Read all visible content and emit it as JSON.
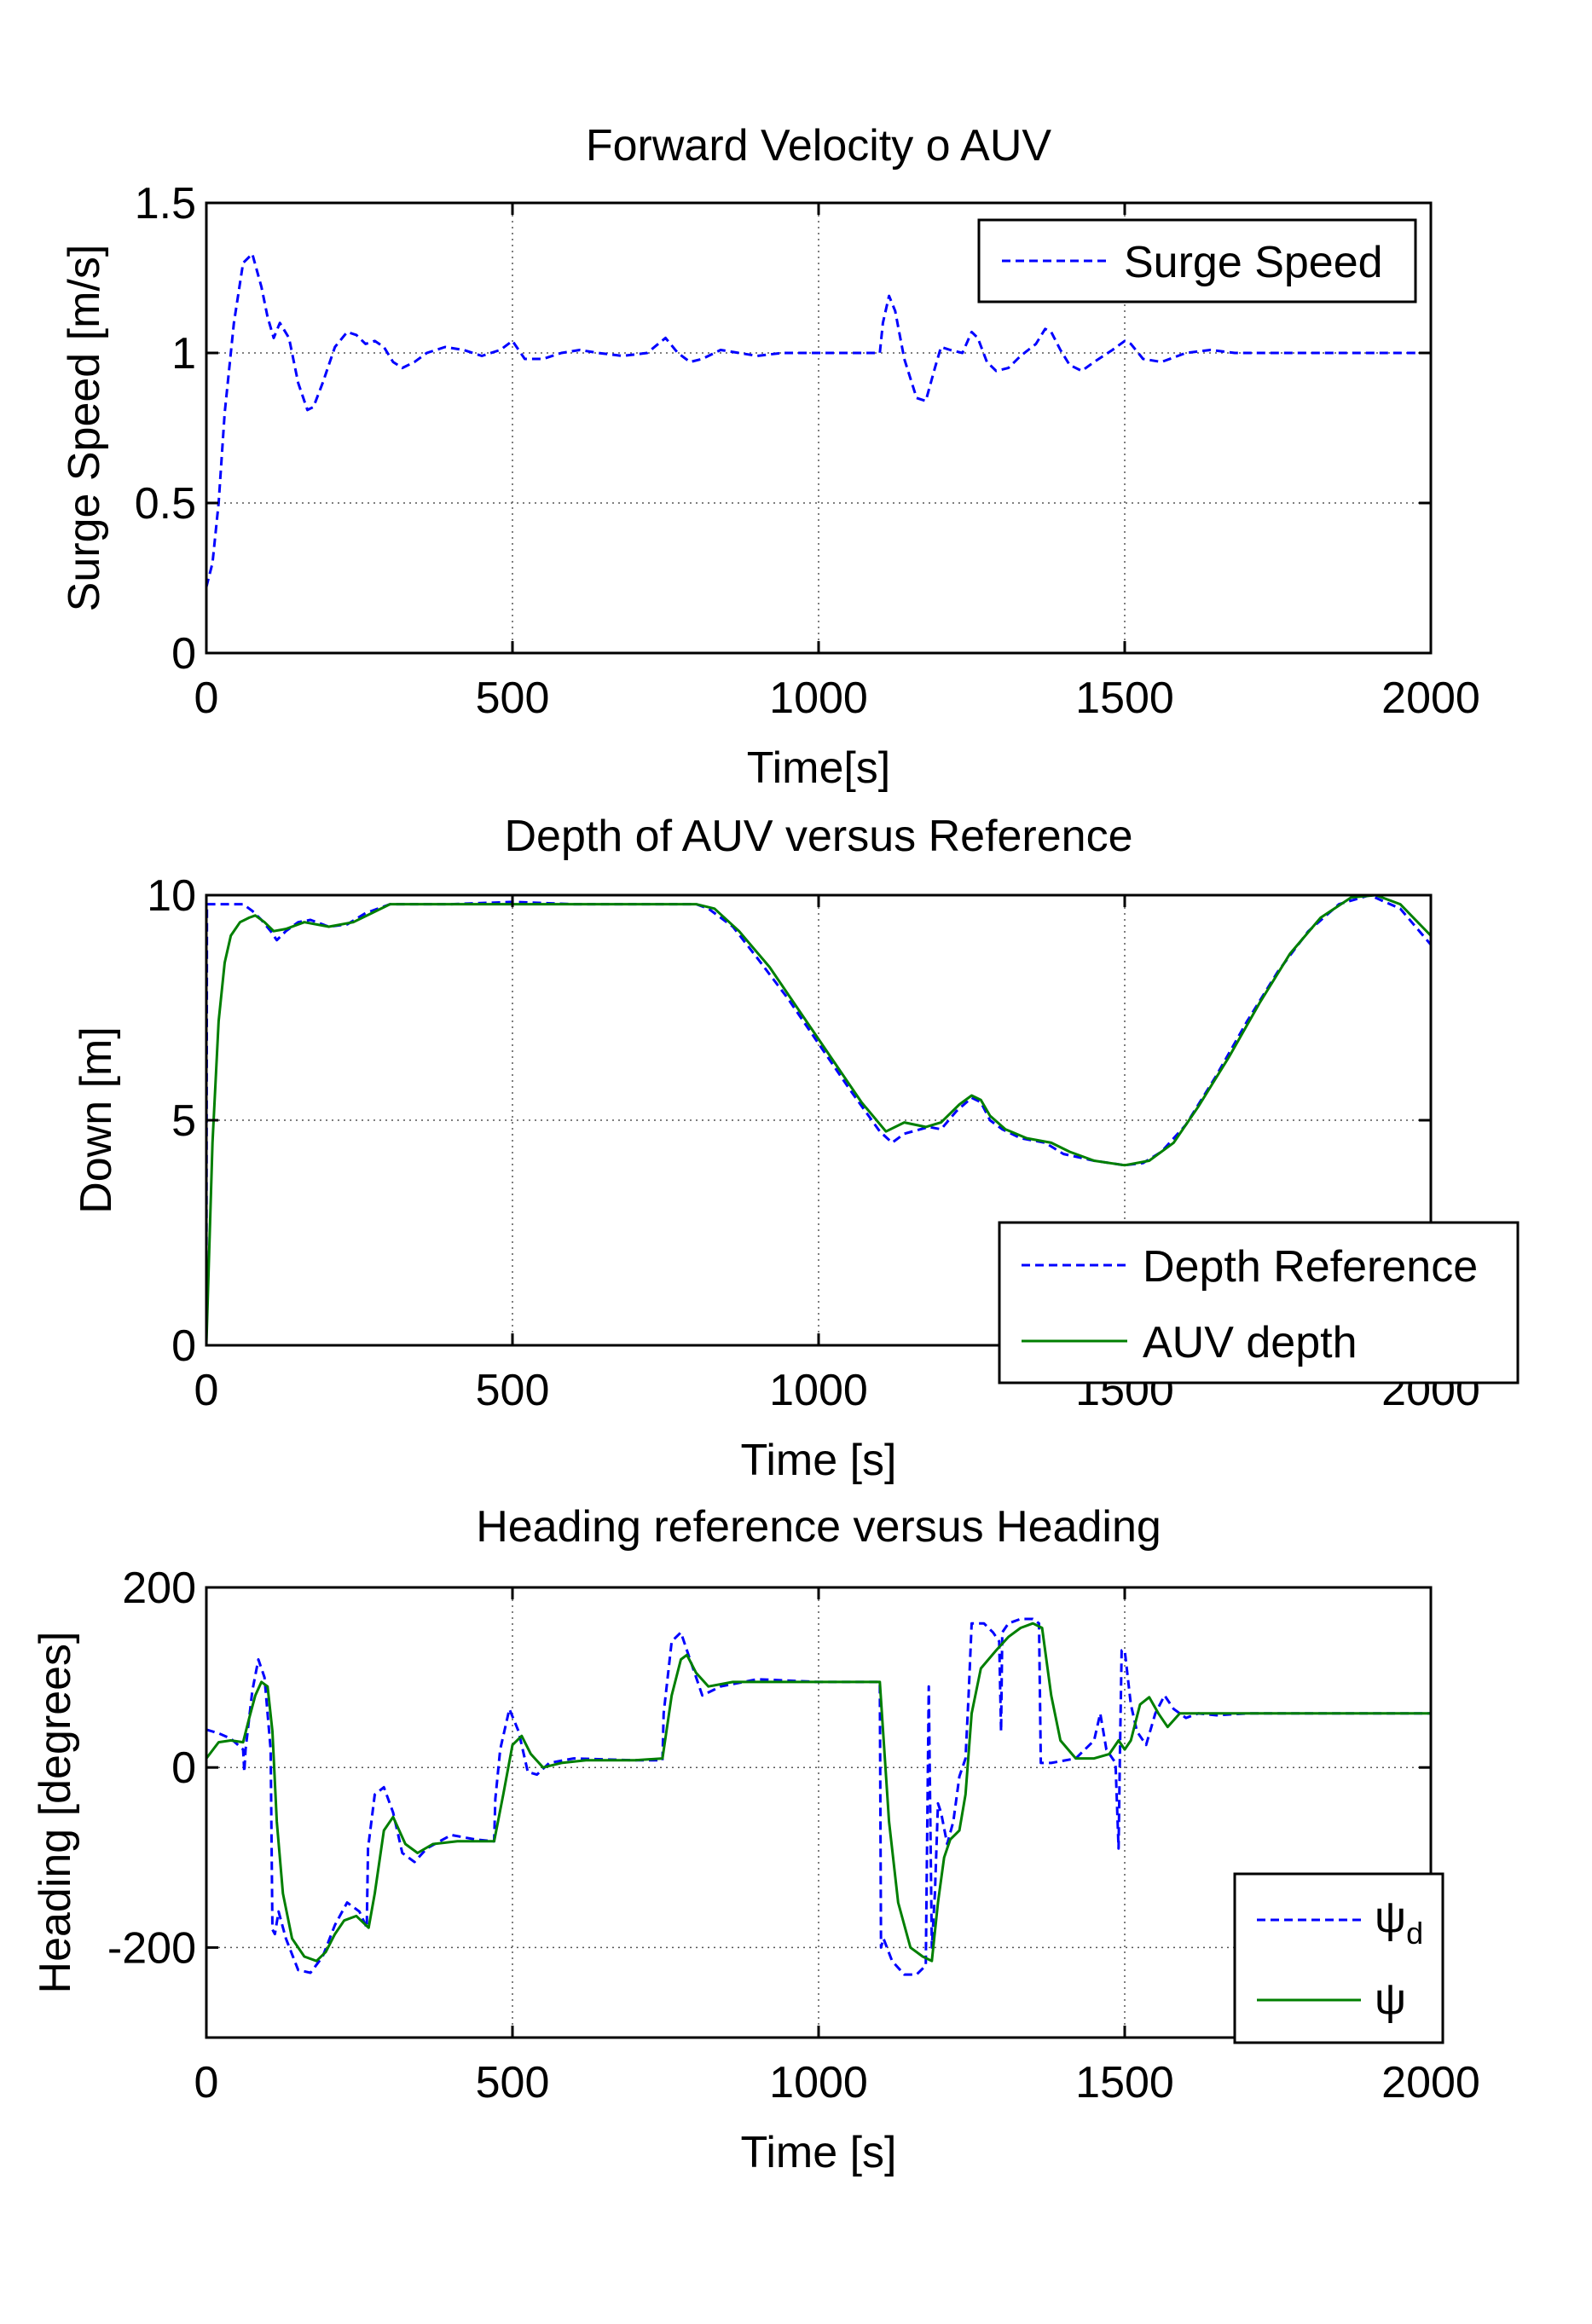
{
  "chart_data": [
    {
      "type": "line",
      "title": "Forward Velocity o AUV",
      "xlabel": "Time[s]",
      "ylabel": "Surge Speed [m/s]",
      "xlim": [
        0,
        2000
      ],
      "ylim": [
        0,
        1.5
      ],
      "xticks": [
        "0",
        "500",
        "1000",
        "1500",
        "2000"
      ],
      "yticks": [
        "0",
        "0.5",
        "1",
        "1.5"
      ],
      "grid": true,
      "legend_position": "top-right",
      "series": [
        {
          "name": "Surge Speed",
          "color": "#0000ff",
          "style": "dashed",
          "x": [
            0,
            10,
            20,
            30,
            45,
            60,
            75,
            90,
            100,
            110,
            120,
            135,
            150,
            165,
            175,
            190,
            210,
            230,
            245,
            260,
            275,
            290,
            305,
            320,
            340,
            360,
            390,
            420,
            450,
            480,
            500,
            520,
            550,
            580,
            610,
            640,
            680,
            720,
            750,
            770,
            790,
            810,
            840,
            870,
            900,
            940,
            980,
            1020,
            1060,
            1100,
            1105,
            1115,
            1125,
            1140,
            1160,
            1175,
            1190,
            1200,
            1215,
            1235,
            1250,
            1260,
            1275,
            1290,
            1310,
            1330,
            1355,
            1370,
            1380,
            1395,
            1410,
            1430,
            1450,
            1480,
            1500,
            1510,
            1530,
            1560,
            1600,
            1640,
            1680,
            1720,
            1760,
            1800,
            1900,
            2000
          ],
          "y": [
            0.22,
            0.3,
            0.5,
            0.8,
            1.1,
            1.3,
            1.33,
            1.22,
            1.12,
            1.05,
            1.1,
            1.05,
            0.9,
            0.81,
            0.82,
            0.9,
            1.02,
            1.07,
            1.06,
            1.03,
            1.04,
            1.02,
            0.97,
            0.95,
            0.97,
            1.0,
            1.02,
            1.01,
            0.99,
            1.01,
            1.04,
            0.98,
            0.98,
            1.0,
            1.01,
            1.0,
            0.99,
            1.0,
            1.05,
            1.0,
            0.97,
            0.98,
            1.01,
            1.0,
            0.99,
            1.0,
            1.0,
            1.0,
            1.0,
            1.0,
            1.1,
            1.19,
            1.14,
            0.98,
            0.85,
            0.84,
            0.95,
            1.02,
            1.01,
            1.0,
            1.07,
            1.05,
            0.97,
            0.94,
            0.95,
            0.99,
            1.03,
            1.08,
            1.07,
            1.01,
            0.96,
            0.94,
            0.97,
            1.01,
            1.04,
            1.03,
            0.98,
            0.97,
            1.0,
            1.01,
            1.0,
            1.0,
            1.0,
            1.0,
            1.0,
            1.0
          ]
        }
      ]
    },
    {
      "type": "line",
      "title": "Depth of AUV versus Reference",
      "xlabel": "Time [s]",
      "ylabel": "Down [m]",
      "xlim": [
        0,
        2000
      ],
      "ylim": [
        0,
        10
      ],
      "xticks": [
        "0",
        "500",
        "1000",
        "1500",
        "2000"
      ],
      "yticks": [
        "0",
        "5",
        "10"
      ],
      "grid": true,
      "legend_position": "bottom-right",
      "series": [
        {
          "name": "Depth Reference",
          "color": "#0000ff",
          "style": "dashed",
          "x": [
            0,
            1,
            60,
            75,
            90,
            105,
            115,
            130,
            150,
            170,
            200,
            230,
            260,
            300,
            400,
            500,
            600,
            700,
            800,
            820,
            860,
            900,
            950,
            1000,
            1050,
            1100,
            1120,
            1140,
            1180,
            1200,
            1225,
            1250,
            1265,
            1280,
            1300,
            1330,
            1370,
            1400,
            1450,
            1500,
            1530,
            1560,
            1600,
            1650,
            1700,
            1750,
            1800,
            1850,
            1900,
            1950,
            2000
          ],
          "y": [
            0.1,
            9.8,
            9.8,
            9.65,
            9.45,
            9.2,
            9.0,
            9.2,
            9.4,
            9.45,
            9.3,
            9.35,
            9.6,
            9.8,
            9.8,
            9.85,
            9.8,
            9.8,
            9.8,
            9.7,
            9.3,
            8.6,
            7.7,
            6.7,
            5.7,
            4.75,
            4.5,
            4.7,
            4.85,
            4.8,
            5.2,
            5.5,
            5.4,
            5.0,
            4.8,
            4.6,
            4.5,
            4.25,
            4.1,
            4.0,
            4.05,
            4.3,
            4.9,
            6.0,
            7.2,
            8.3,
            9.2,
            9.8,
            10.0,
            9.7,
            8.9
          ]
        },
        {
          "name": "AUV depth",
          "color": "#007f00",
          "style": "solid",
          "x": [
            0,
            10,
            20,
            30,
            40,
            55,
            70,
            80,
            95,
            110,
            130,
            160,
            200,
            240,
            270,
            300,
            400,
            500,
            600,
            700,
            800,
            830,
            870,
            920,
            970,
            1020,
            1070,
            1110,
            1140,
            1175,
            1200,
            1230,
            1250,
            1265,
            1280,
            1305,
            1340,
            1380,
            1410,
            1450,
            1500,
            1540,
            1580,
            1620,
            1670,
            1720,
            1770,
            1820,
            1870,
            1910,
            1950,
            2000
          ],
          "y": [
            0.0,
            4.5,
            7.2,
            8.5,
            9.1,
            9.4,
            9.5,
            9.55,
            9.4,
            9.2,
            9.25,
            9.4,
            9.3,
            9.4,
            9.6,
            9.8,
            9.8,
            9.8,
            9.8,
            9.8,
            9.8,
            9.7,
            9.2,
            8.4,
            7.4,
            6.4,
            5.4,
            4.75,
            4.95,
            4.85,
            4.95,
            5.35,
            5.55,
            5.45,
            5.1,
            4.8,
            4.6,
            4.5,
            4.3,
            4.1,
            4.0,
            4.1,
            4.5,
            5.3,
            6.4,
            7.6,
            8.7,
            9.5,
            9.95,
            10.0,
            9.8,
            9.1
          ]
        }
      ]
    },
    {
      "type": "line",
      "title": "Heading reference versus Heading",
      "xlabel": "Time [s]",
      "ylabel": "Heading [degrees]",
      "xlim": [
        0,
        2000
      ],
      "ylim": [
        -300,
        200
      ],
      "xticks": [
        "0",
        "500",
        "1000",
        "1500",
        "2000"
      ],
      "yticks": [
        "-200",
        "0",
        "200"
      ],
      "grid": true,
      "legend_position": "bottom-right",
      "series": [
        {
          "name": "ψd",
          "color": "#0000ff",
          "style": "dashed",
          "x": [
            0,
            20,
            40,
            60,
            62,
            64,
            75,
            85,
            95,
            105,
            108,
            112,
            118,
            130,
            150,
            170,
            190,
            210,
            230,
            250,
            262,
            264,
            275,
            290,
            305,
            320,
            340,
            360,
            400,
            440,
            470,
            472,
            480,
            495,
            510,
            525,
            540,
            560,
            600,
            700,
            745,
            747,
            760,
            775,
            790,
            810,
            840,
            900,
            1000,
            1100,
            1102,
            1106,
            1120,
            1140,
            1160,
            1175,
            1180,
            1185,
            1190,
            1195,
            1200,
            1210,
            1220,
            1230,
            1240,
            1245,
            1250,
            1270,
            1285,
            1295,
            1298,
            1300,
            1310,
            1330,
            1350,
            1360,
            1363,
            1380,
            1420,
            1450,
            1460,
            1470,
            1485,
            1490,
            1492,
            1495,
            1500,
            1510,
            1520,
            1535,
            1550,
            1565,
            1580,
            1600,
            1620,
            1650,
            1700,
            1750,
            2000
          ],
          "y": [
            42,
            38,
            32,
            20,
            -5,
            20,
            85,
            120,
            100,
            20,
            -180,
            -185,
            -160,
            -190,
            -225,
            -228,
            -210,
            -175,
            -150,
            -160,
            -178,
            -90,
            -30,
            -22,
            -50,
            -95,
            -105,
            -90,
            -75,
            -80,
            -82,
            -35,
            20,
            65,
            40,
            -5,
            -8,
            5,
            10,
            8,
            8,
            60,
            140,
            150,
            120,
            80,
            90,
            98,
            95,
            95,
            -200,
            -190,
            -215,
            -230,
            -230,
            -220,
            90,
            -200,
            -140,
            -40,
            -50,
            -85,
            -60,
            -10,
            10,
            80,
            160,
            160,
            150,
            140,
            40,
            150,
            160,
            165,
            165,
            160,
            5,
            5,
            10,
            30,
            60,
            20,
            5,
            -90,
            10,
            130,
            130,
            70,
            40,
            25,
            60,
            80,
            65,
            55,
            60,
            58,
            60,
            60,
            60
          ]
        },
        {
          "name": "ψ",
          "color": "#007f00",
          "style": "solid",
          "x": [
            0,
            20,
            40,
            60,
            70,
            80,
            90,
            100,
            108,
            115,
            125,
            140,
            160,
            180,
            195,
            210,
            225,
            245,
            265,
            275,
            290,
            305,
            325,
            345,
            370,
            410,
            450,
            470,
            485,
            500,
            515,
            530,
            550,
            580,
            620,
            700,
            745,
            760,
            775,
            785,
            800,
            820,
            860,
            900,
            1000,
            1100,
            1115,
            1130,
            1150,
            1170,
            1185,
            1195,
            1205,
            1215,
            1230,
            1240,
            1250,
            1265,
            1290,
            1310,
            1330,
            1350,
            1365,
            1380,
            1395,
            1420,
            1450,
            1475,
            1490,
            1500,
            1510,
            1525,
            1540,
            1555,
            1570,
            1590,
            1620,
            1700,
            2000
          ],
          "y": [
            10,
            28,
            30,
            28,
            55,
            80,
            95,
            90,
            40,
            -60,
            -140,
            -190,
            -210,
            -215,
            -205,
            -185,
            -170,
            -165,
            -178,
            -140,
            -70,
            -55,
            -85,
            -95,
            -85,
            -82,
            -82,
            -82,
            -30,
            25,
            35,
            15,
            0,
            5,
            8,
            8,
            10,
            80,
            120,
            125,
            105,
            90,
            95,
            95,
            95,
            95,
            -60,
            -150,
            -200,
            -210,
            -215,
            -150,
            -100,
            -80,
            -70,
            -30,
            60,
            110,
            130,
            145,
            155,
            160,
            155,
            80,
            30,
            10,
            10,
            15,
            30,
            20,
            30,
            70,
            78,
            60,
            45,
            60,
            60,
            60,
            60
          ]
        }
      ]
    }
  ]
}
